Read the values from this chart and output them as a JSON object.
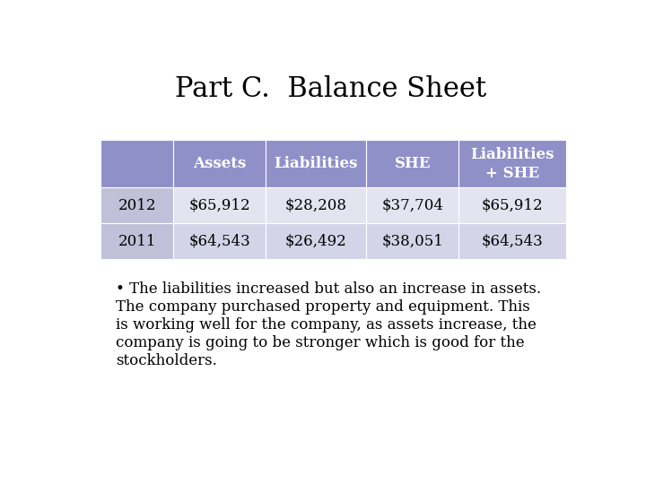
{
  "title": "Part C.  Balance Sheet",
  "title_fontsize": 22,
  "title_font": "serif",
  "background_color": "#ffffff",
  "table": {
    "col_headers": [
      "",
      "Assets",
      "Liabilities",
      "SHE",
      "Liabilities\n+ SHE"
    ],
    "rows": [
      [
        "2012",
        "$65,912",
        "$28,208",
        "$37,704",
        "$65,912"
      ],
      [
        "2011",
        "$64,543",
        "$26,492",
        "$38,051",
        "$64,543"
      ]
    ],
    "header_bg": "#9090c8",
    "header_text_color": "#ffffff",
    "row0_bg": "#e4e4f0",
    "row1_bg": "#d4d4e8",
    "year_col_bg": "#c0c0d8",
    "text_color": "#000000",
    "font_size": 12,
    "header_font_size": 12
  },
  "bullet_lines": [
    "• The liabilities increased but also an increase in assets.",
    "The company purchased property and equipment. This",
    "is working well for the company, as assets increase, the",
    "company is going to be stronger which is good for the",
    "stockholders."
  ],
  "bullet_fontsize": 12,
  "bullet_font": "serif"
}
